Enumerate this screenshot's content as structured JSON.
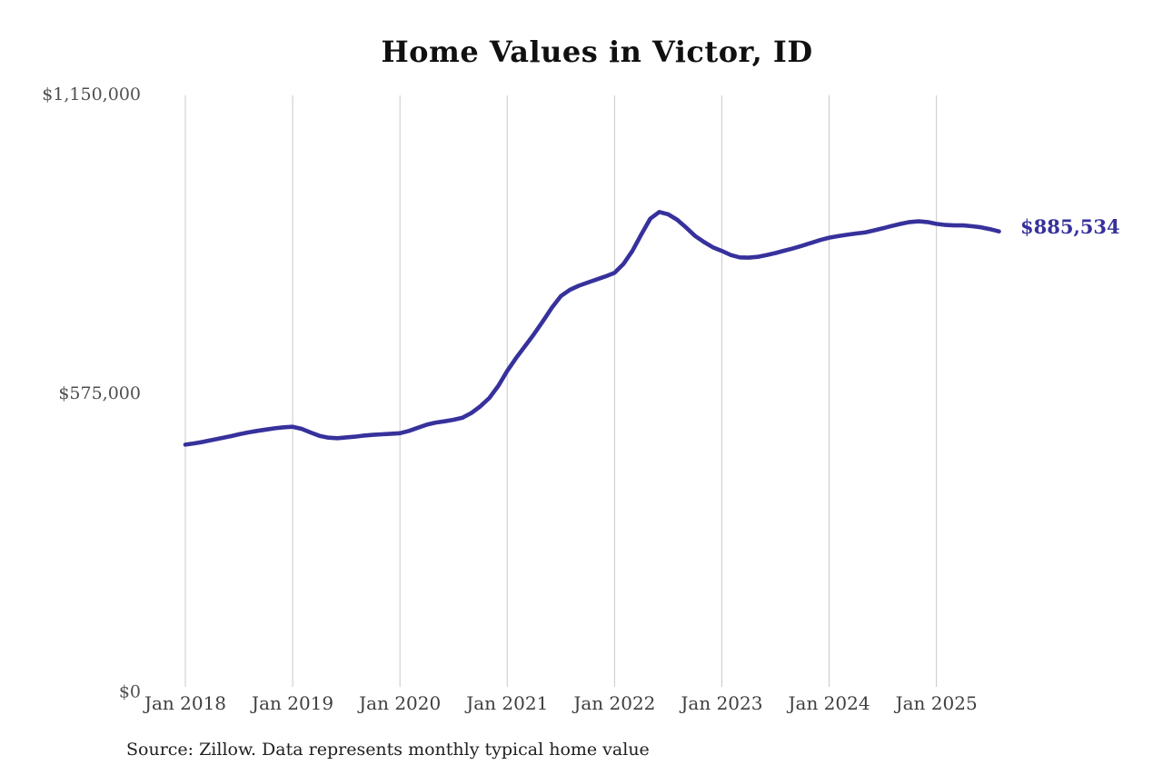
{
  "page": {
    "background": "#ffffff"
  },
  "chart": {
    "title": "Home Values in Victor, ID",
    "source_note": "Source: Zillow. Data represents monthly typical home value",
    "colors": {
      "line": "#37319c",
      "end_label": "#37319c",
      "gridline": "#c9c9c9",
      "y_tick": "#4f4f4f",
      "x_tick": "#3f3f3f",
      "title": "#101010",
      "source": "#212121",
      "background": "#ffffff"
    }
  },
  "chart_data": {
    "type": "line",
    "title": "Home Values in Victor, ID",
    "xlabel": "",
    "ylabel": "",
    "ylim": [
      0,
      1150000
    ],
    "grid": "vertical-only",
    "legend": "none",
    "end_label": "$885,534",
    "end_value": 885534,
    "y_ticks": [
      {
        "label": "$1,150,000",
        "value": 1150000
      },
      {
        "label": "$575,000",
        "value": 575000
      },
      {
        "label": "$0",
        "value": 0
      }
    ],
    "x_ticks": [
      {
        "label": "Jan 2018",
        "month_index": 0
      },
      {
        "label": "Jan 2019",
        "month_index": 12
      },
      {
        "label": "Jan 2020",
        "month_index": 24
      },
      {
        "label": "Jan 2021",
        "month_index": 36
      },
      {
        "label": "Jan 2022",
        "month_index": 48
      },
      {
        "label": "Jan 2023",
        "month_index": 60
      },
      {
        "label": "Jan 2024",
        "month_index": 72
      },
      {
        "label": "Jan 2025",
        "month_index": 84
      }
    ],
    "series": [
      {
        "name": "Monthly typical home value",
        "months": [
          "2018-01",
          "2018-02",
          "2018-03",
          "2018-04",
          "2018-05",
          "2018-06",
          "2018-07",
          "2018-08",
          "2018-09",
          "2018-10",
          "2018-11",
          "2018-12",
          "2019-01",
          "2019-02",
          "2019-03",
          "2019-04",
          "2019-05",
          "2019-06",
          "2019-07",
          "2019-08",
          "2019-09",
          "2019-10",
          "2019-11",
          "2019-12",
          "2020-01",
          "2020-02",
          "2020-03",
          "2020-04",
          "2020-05",
          "2020-06",
          "2020-07",
          "2020-08",
          "2020-09",
          "2020-10",
          "2020-11",
          "2020-12",
          "2021-01",
          "2021-02",
          "2021-03",
          "2021-04",
          "2021-05",
          "2021-06",
          "2021-07",
          "2021-08",
          "2021-09",
          "2021-10",
          "2021-11",
          "2021-12",
          "2022-01",
          "2022-02",
          "2022-03",
          "2022-04",
          "2022-05",
          "2022-06",
          "2022-07",
          "2022-08",
          "2022-09",
          "2022-10",
          "2022-11",
          "2022-12",
          "2023-01",
          "2023-02",
          "2023-03",
          "2023-04",
          "2023-05",
          "2023-06",
          "2023-07",
          "2023-08",
          "2023-09",
          "2023-10",
          "2023-11",
          "2023-12",
          "2024-01",
          "2024-02",
          "2024-03",
          "2024-04",
          "2024-05",
          "2024-06",
          "2024-07",
          "2024-08",
          "2024-09",
          "2024-10",
          "2024-11",
          "2024-12",
          "2025-01",
          "2025-02",
          "2025-03",
          "2025-04",
          "2025-05",
          "2025-06",
          "2025-07",
          "2025-08"
        ],
        "values": [
          475000,
          477500,
          480500,
          484000,
          487500,
          491000,
          495000,
          498500,
          501500,
          504000,
          506500,
          508500,
          509500,
          505500,
          498500,
          492000,
          488500,
          487500,
          489000,
          490500,
          492500,
          494000,
          495000,
          496000,
          497000,
          501500,
          507500,
          513500,
          517500,
          520000,
          523000,
          527000,
          536000,
          549000,
          565000,
          588000,
          617000,
          642000,
          665000,
          688000,
          713000,
          739000,
          761000,
          773000,
          781000,
          787000,
          793000,
          799000,
          806000,
          823000,
          848000,
          880000,
          910000,
          923000,
          918500,
          908000,
          893000,
          877000,
          865000,
          855000,
          848000,
          840000,
          835500,
          835000,
          836500,
          840000,
          844000,
          848500,
          853000,
          858000,
          863500,
          869000,
          873500,
          876500,
          879000,
          881500,
          883500,
          887500,
          891500,
          896000,
          900000,
          903500,
          905000,
          903500,
          900000,
          898000,
          897000,
          897000,
          895500,
          893500,
          890000,
          885534
        ]
      }
    ]
  }
}
